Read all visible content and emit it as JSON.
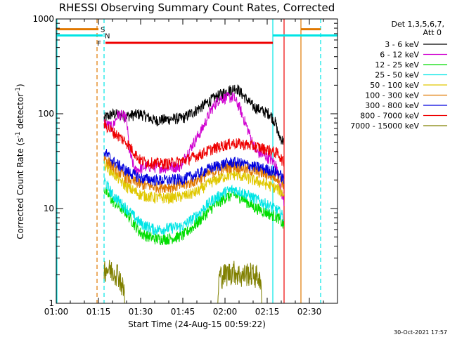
{
  "chart_data": {
    "type": "line",
    "title": "RHESSI Observing Summary Count Rates, Corrected",
    "xlabel": "Start Time (24-Aug-15 00:59:22)",
    "ylabel_parts": [
      "Corrected Count Rate (s",
      "-1",
      " detector",
      "-1",
      ")"
    ],
    "y_scale": "log",
    "ylim": [
      1,
      1000
    ],
    "xlim_min": [
      0,
      100
    ],
    "x_ticks": [
      {
        "min": 0,
        "label": "01:00"
      },
      {
        "min": 15,
        "label": "01:15"
      },
      {
        "min": 30,
        "label": "01:30"
      },
      {
        "min": 45,
        "label": "01:45"
      },
      {
        "min": 60,
        "label": "02:00"
      },
      {
        "min": 75,
        "label": "02:15"
      },
      {
        "min": 90,
        "label": "02:30"
      }
    ],
    "y_ticks": [
      {
        "value": 1,
        "label": "1"
      },
      {
        "value": 10,
        "label": "10"
      },
      {
        "value": 100,
        "label": "100"
      },
      {
        "value": 1000,
        "label": "1000"
      }
    ],
    "legend_header": [
      "Det 1,3,5,6,7,",
      "Att 0"
    ],
    "series": [
      {
        "name": "3 - 6 keV",
        "color": "#000000",
        "values": [
          [
            17,
            90
          ],
          [
            20,
            100
          ],
          [
            25,
            95
          ],
          [
            30,
            100
          ],
          [
            35,
            85
          ],
          [
            40,
            88
          ],
          [
            45,
            90
          ],
          [
            50,
            110
          ],
          [
            55,
            140
          ],
          [
            60,
            170
          ],
          [
            64,
            190
          ],
          [
            67,
            150
          ],
          [
            70,
            120
          ],
          [
            74,
            105
          ],
          [
            76,
            100
          ],
          [
            78,
            80
          ],
          [
            79,
            60
          ],
          [
            81,
            50
          ]
        ]
      },
      {
        "name": "6 - 12 keV",
        "color": "#d000d0",
        "values": [
          [
            17,
            80
          ],
          [
            20,
            72
          ],
          [
            22,
            100
          ],
          [
            25,
            90
          ],
          [
            26,
            40
          ],
          [
            28,
            25
          ],
          [
            32,
            28
          ],
          [
            38,
            27
          ],
          [
            44,
            28
          ],
          [
            48,
            45
          ],
          [
            52,
            70
          ],
          [
            55,
            110
          ],
          [
            58,
            145
          ],
          [
            63,
            150
          ],
          [
            65,
            120
          ],
          [
            68,
            70
          ],
          [
            71,
            40
          ],
          [
            75,
            35
          ],
          [
            78,
            30
          ],
          [
            80,
            15
          ],
          [
            81,
            12
          ]
        ]
      },
      {
        "name": "12 - 25 keV",
        "color": "#00dd00",
        "values": [
          [
            17,
            16
          ],
          [
            20,
            12
          ],
          [
            25,
            9
          ],
          [
            30,
            5.5
          ],
          [
            35,
            4.8
          ],
          [
            40,
            4.8
          ],
          [
            45,
            5.2
          ],
          [
            50,
            7
          ],
          [
            55,
            10
          ],
          [
            60,
            13
          ],
          [
            63,
            14
          ],
          [
            66,
            13
          ],
          [
            70,
            10.5
          ],
          [
            75,
            9
          ],
          [
            79,
            8
          ],
          [
            81,
            6.5
          ]
        ]
      },
      {
        "name": "25 - 50 keV",
        "color": "#00e5e5",
        "values": [
          [
            17,
            20
          ],
          [
            20,
            14
          ],
          [
            25,
            10
          ],
          [
            30,
            7
          ],
          [
            35,
            6
          ],
          [
            40,
            6.2
          ],
          [
            45,
            6.5
          ],
          [
            50,
            8.5
          ],
          [
            55,
            12
          ],
          [
            60,
            15
          ],
          [
            63,
            16
          ],
          [
            66,
            15
          ],
          [
            70,
            13
          ],
          [
            75,
            11
          ],
          [
            79,
            9.5
          ],
          [
            81,
            8
          ]
        ]
      },
      {
        "name": "50 - 100 keV",
        "color": "#e0c800",
        "values": [
          [
            17,
            30
          ],
          [
            20,
            24
          ],
          [
            25,
            17
          ],
          [
            30,
            14
          ],
          [
            35,
            13
          ],
          [
            40,
            13
          ],
          [
            45,
            13.5
          ],
          [
            50,
            15
          ],
          [
            55,
            19
          ],
          [
            60,
            22
          ],
          [
            63,
            23
          ],
          [
            66,
            22
          ],
          [
            70,
            20
          ],
          [
            75,
            18
          ],
          [
            79,
            16
          ],
          [
            81,
            14
          ]
        ]
      },
      {
        "name": "100 - 300 keV",
        "color": "#e07800",
        "values": [
          [
            17,
            35
          ],
          [
            20,
            28
          ],
          [
            25,
            21
          ],
          [
            30,
            18
          ],
          [
            35,
            17
          ],
          [
            40,
            17
          ],
          [
            45,
            17.5
          ],
          [
            50,
            20
          ],
          [
            55,
            24
          ],
          [
            60,
            27
          ],
          [
            63,
            28
          ],
          [
            66,
            27
          ],
          [
            70,
            25
          ],
          [
            75,
            23
          ],
          [
            79,
            21
          ],
          [
            81,
            18
          ]
        ]
      },
      {
        "name": "300 - 800 keV",
        "color": "#0000dd",
        "values": [
          [
            17,
            40
          ],
          [
            20,
            32
          ],
          [
            25,
            25
          ],
          [
            30,
            21
          ],
          [
            35,
            20
          ],
          [
            40,
            20
          ],
          [
            45,
            20.5
          ],
          [
            50,
            23
          ],
          [
            55,
            27
          ],
          [
            60,
            30
          ],
          [
            63,
            31
          ],
          [
            66,
            30
          ],
          [
            70,
            28
          ],
          [
            75,
            26
          ],
          [
            79,
            24
          ],
          [
            81,
            20
          ]
        ]
      },
      {
        "name": "800 - 7000 keV",
        "color": "#ee0000",
        "values": [
          [
            17,
            78
          ],
          [
            20,
            65
          ],
          [
            25,
            50
          ],
          [
            30,
            32
          ],
          [
            35,
            30
          ],
          [
            40,
            30
          ],
          [
            45,
            32
          ],
          [
            50,
            36
          ],
          [
            55,
            42
          ],
          [
            60,
            47
          ],
          [
            63,
            49
          ],
          [
            66,
            48
          ],
          [
            70,
            46
          ],
          [
            75,
            42
          ],
          [
            79,
            38
          ],
          [
            81,
            30
          ]
        ]
      },
      {
        "name": "7000 - 15000 keV",
        "color": "#808000",
        "values": [
          [
            17,
            2.8
          ],
          [
            22,
            2.5
          ],
          [
            24,
            1.6
          ],
          [
            26,
            1
          ],
          [
            57,
            1
          ],
          [
            58,
            2.3
          ],
          [
            63,
            2.6
          ],
          [
            66,
            2.3
          ],
          [
            68,
            2.5
          ],
          [
            72,
            2.3
          ],
          [
            74,
            1
          ]
        ]
      }
    ],
    "state_bars": [
      {
        "label": "S",
        "color": "#e07800",
        "segments": [
          [
            0,
            15
          ],
          [
            87,
            94
          ]
        ],
        "level": 780
      },
      {
        "label": "N",
        "color": "#00e5e5",
        "segments": [
          [
            0,
            16.5
          ],
          [
            77,
            100
          ]
        ],
        "level": 670
      },
      {
        "label": "F",
        "color": "#ee0000",
        "segments": [
          [
            17.5,
            77
          ]
        ],
        "level": 560
      }
    ],
    "vertical_markers": [
      {
        "min": 14.5,
        "color": "#e07800",
        "style": "dashed"
      },
      {
        "min": 17,
        "color": "#00e5e5",
        "style": "dashed"
      },
      {
        "min": 77,
        "color": "#00e5e5",
        "style": "solid"
      },
      {
        "min": 81,
        "color": "#ee0000",
        "style": "solid"
      },
      {
        "min": 87,
        "color": "#e07800",
        "style": "solid"
      },
      {
        "min": 94,
        "color": "#00e5e5",
        "style": "dashed"
      }
    ],
    "gap_min": [
      0,
      17
    ],
    "footer": "30-Oct-2021 17:57"
  }
}
